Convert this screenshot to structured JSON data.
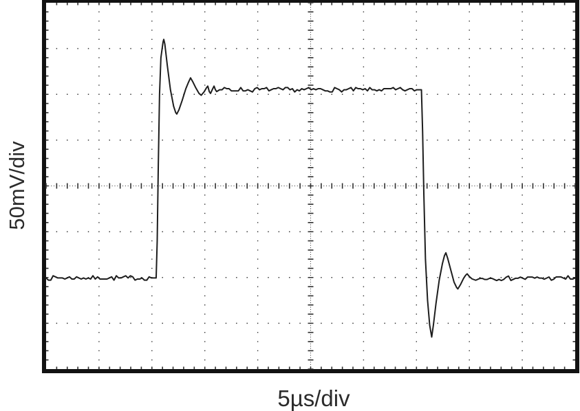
{
  "figure": {
    "kind": "oscilloscope-screenshot",
    "background_color": "#ffffff",
    "border_color": "#121212",
    "grid_color": "#2e2e2e",
    "trace_color": "#1d1d1d",
    "label_color": "#2b2b2b"
  },
  "labels": {
    "y_axis": "50mV/div",
    "x_axis": "5µs/div"
  },
  "chart_data": {
    "type": "line",
    "title": "",
    "xlabel": "5µs/div",
    "ylabel": "50mV/div",
    "x_units": "µs",
    "y_units": "mV",
    "x_per_div": 5,
    "y_per_div": 50,
    "grid": {
      "divisions_x": 10,
      "divisions_y": 8,
      "minor_per_div": 5,
      "style": "dotted major gridlines, tick-marked center crosshair, minor ticks along border"
    },
    "xlim": [
      -25,
      25
    ],
    "ylim": [
      -200,
      200
    ],
    "signal_summary": {
      "description": "square pulse step response with overshoot and ringing on both edges",
      "low_level_mV": -100,
      "high_level_mV": 105,
      "rising_edge_us": -14.6,
      "falling_edge_us": 10.5,
      "pulse_width_us": 25,
      "rise_overshoot_peak_mV": 160,
      "rise_undershoot_mV": 78,
      "fall_undershoot_peak_mV": -165,
      "fall_overshoot_mV": -73
    },
    "noise_mV": 2.2,
    "trace": [
      [
        -25.0,
        -100.5
      ],
      [
        -14.6,
        -100.5
      ],
      [
        -14.5,
        -60
      ],
      [
        -14.4,
        20
      ],
      [
        -14.28,
        100
      ],
      [
        -14.15,
        140
      ],
      [
        -13.95,
        157
      ],
      [
        -13.88,
        160
      ],
      [
        -13.78,
        155
      ],
      [
        -13.55,
        132
      ],
      [
        -13.25,
        105
      ],
      [
        -12.95,
        87
      ],
      [
        -12.75,
        80
      ],
      [
        -12.65,
        78.5
      ],
      [
        -12.45,
        83
      ],
      [
        -12.15,
        93
      ],
      [
        -11.8,
        106
      ],
      [
        -11.55,
        113
      ],
      [
        -11.35,
        118
      ],
      [
        -11.15,
        114
      ],
      [
        -10.85,
        107
      ],
      [
        -10.55,
        101
      ],
      [
        -10.34,
        99
      ],
      [
        -10.05,
        103
      ],
      [
        -9.85,
        107
      ],
      [
        -9.72,
        109
      ],
      [
        -9.58,
        103
      ],
      [
        -9.46,
        101
      ],
      [
        -9.3,
        105
      ],
      [
        -9.13,
        109
      ],
      [
        -9.0,
        105
      ],
      [
        -8.88,
        103
      ],
      [
        -8.6,
        105
      ],
      [
        10.47,
        105
      ],
      [
        10.58,
        60
      ],
      [
        10.7,
        -10
      ],
      [
        10.85,
        -80
      ],
      [
        11.05,
        -125
      ],
      [
        11.25,
        -152
      ],
      [
        11.44,
        -165
      ],
      [
        11.6,
        -152
      ],
      [
        11.85,
        -128
      ],
      [
        12.15,
        -103
      ],
      [
        12.45,
        -85
      ],
      [
        12.65,
        -76
      ],
      [
        12.78,
        -73
      ],
      [
        12.95,
        -79
      ],
      [
        13.25,
        -92
      ],
      [
        13.55,
        -105
      ],
      [
        13.8,
        -111
      ],
      [
        13.91,
        -112.5
      ],
      [
        14.15,
        -108
      ],
      [
        14.45,
        -101
      ],
      [
        14.65,
        -97.5
      ],
      [
        14.79,
        -96
      ],
      [
        15.0,
        -99
      ],
      [
        15.25,
        -101.5
      ],
      [
        15.6,
        -103
      ],
      [
        16.0,
        -101
      ],
      [
        25.0,
        -100.5
      ]
    ]
  }
}
